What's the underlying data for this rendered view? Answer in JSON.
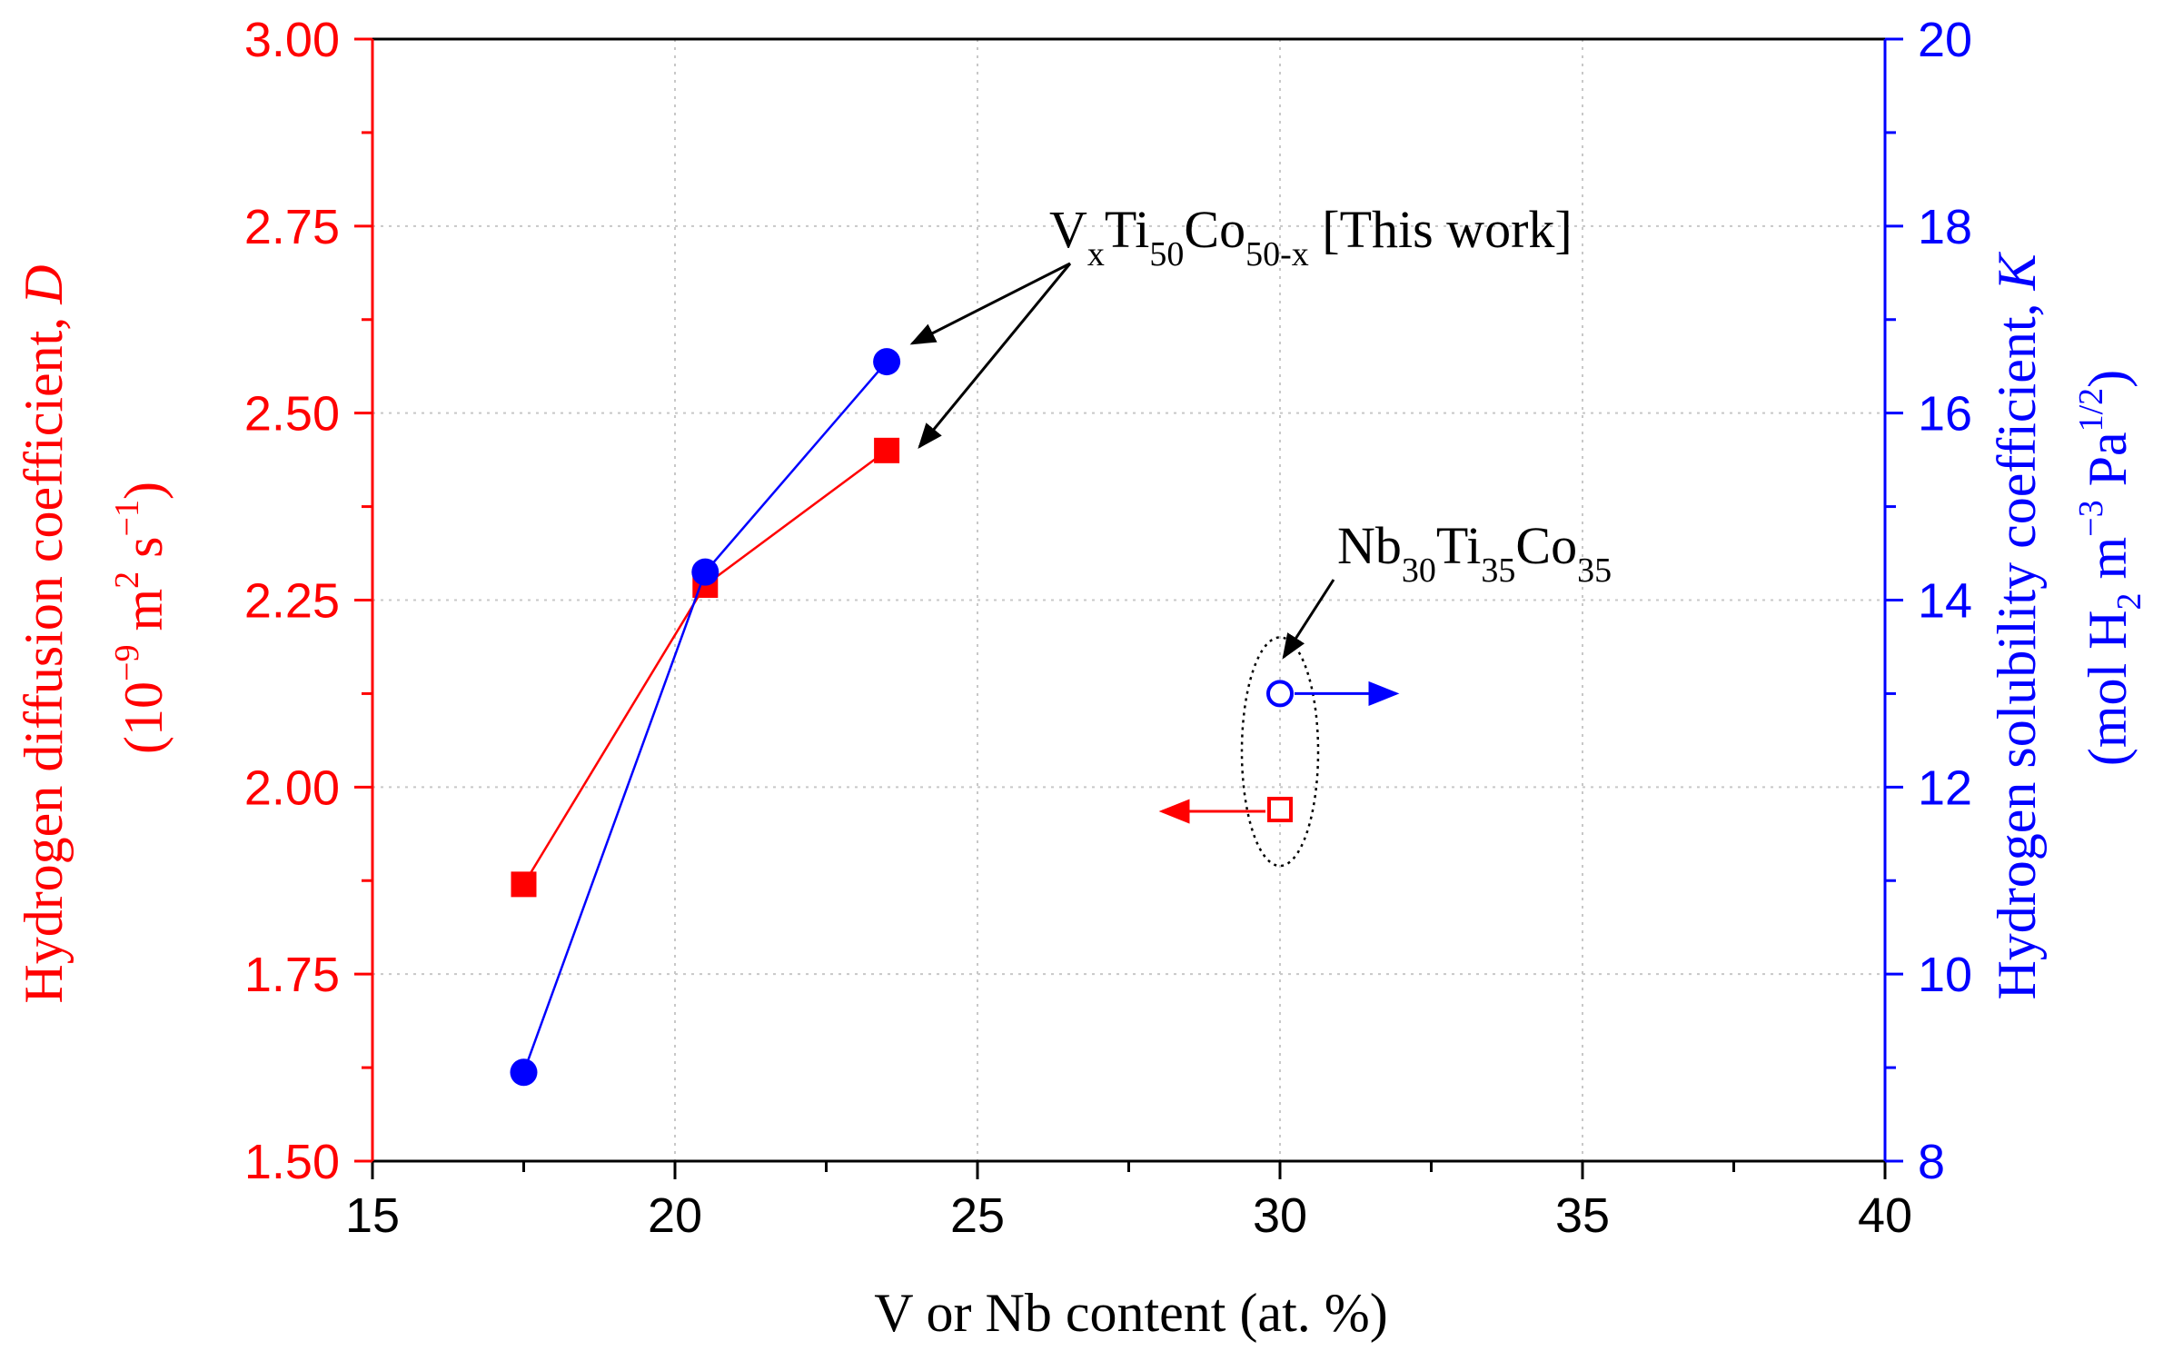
{
  "chart_data": {
    "type": "scatter",
    "title": "",
    "xlabel": "V or Nb content (at. %)",
    "xlim": [
      15,
      40
    ],
    "xticks": [
      "15",
      "20",
      "25",
      "30",
      "35",
      "40"
    ],
    "y_left": {
      "label_line1": "Hydrogen diffusion coefficient, D",
      "label_line1_main": "Hydrogen diffusion coefficient,",
      "label_line1_var": "D",
      "label_line2": "(10^-9 m^2 s^-1)",
      "label_line2_parts": [
        "(10",
        "−9",
        " m",
        "2",
        " s",
        "−1",
        ")"
      ],
      "ylim": [
        1.5,
        3.0
      ],
      "ticks": [
        "1.50",
        "1.75",
        "2.00",
        "2.25",
        "2.50",
        "2.75",
        "3.00"
      ],
      "color": "#ff0000"
    },
    "y_right": {
      "label_line1": "Hydrogen solubility coefficient, K",
      "label_line1_main": "Hydrogen solubility coefficient,",
      "label_line1_var": "K",
      "label_line2": "(mol H2 m^-3 Pa^1/2)",
      "label_line2_parts": [
        "(mol H",
        "2",
        " m",
        "−3",
        " Pa",
        "1/2",
        ")"
      ],
      "ylim": [
        8,
        20
      ],
      "ticks": [
        "8",
        "10",
        "12",
        "14",
        "16",
        "18",
        "20"
      ],
      "color": "#0000ff"
    },
    "series": [
      {
        "name": "D (VxTi50Co50-x)",
        "axis": "left",
        "marker": "square-filled",
        "color": "#ff0000",
        "connected": true,
        "x": [
          17.5,
          20.5,
          23.5
        ],
        "y": [
          1.87,
          2.27,
          2.45
        ]
      },
      {
        "name": "K (VxTi50Co50-x)",
        "axis": "right",
        "marker": "circle-filled",
        "color": "#0000ff",
        "connected": true,
        "x": [
          17.5,
          20.5,
          23.5
        ],
        "y": [
          8.95,
          14.3,
          16.55
        ]
      },
      {
        "name": "D (Nb30Ti35Co35)",
        "axis": "left",
        "marker": "square-open",
        "color": "#ff0000",
        "connected": false,
        "x": [
          30
        ],
        "y": [
          1.97
        ]
      },
      {
        "name": "K (Nb30Ti35Co35)",
        "axis": "right",
        "marker": "circle-open",
        "color": "#0000ff",
        "connected": false,
        "x": [
          30
        ],
        "y": [
          13.0
        ]
      }
    ],
    "annotations": [
      {
        "text": "VxTi50Co50-x [This work]",
        "parts": [
          "V",
          "x",
          "Ti",
          "50",
          "Co",
          "50-x",
          " [This work]"
        ]
      },
      {
        "text": "Nb30Ti35Co35",
        "parts": [
          "Nb",
          "30",
          "Ti",
          "35",
          "Co",
          "35"
        ]
      }
    ]
  }
}
